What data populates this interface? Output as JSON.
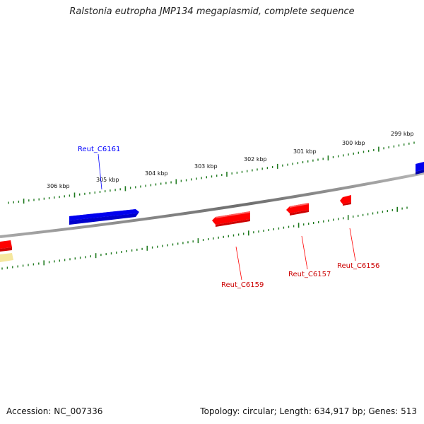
{
  "title": "Ralstonia eutropha JMP134 megaplasmid, complete sequence",
  "footer": {
    "accession": "Accession: NC_007336",
    "summary": "Topology: circular; Length: 634,917 bp; Genes: 513"
  },
  "colors": {
    "forward_gene": "#0000ff",
    "reverse_gene": "#ff0000",
    "other_feature": "#f5e79e",
    "backbone": "#808080",
    "tick": "#1f7a1f"
  },
  "scale_labels": [
    "306 kbp",
    "305 kbp",
    "304 kbp",
    "303 kbp",
    "302 kbp",
    "301 kbp",
    "300 kbp",
    "299 kbp"
  ],
  "gene_labels": {
    "c6161": "Reut_C6161",
    "c6159": "Reut_C6159",
    "c6157": "Reut_C6157",
    "c6156": "Reut_C6156"
  }
}
